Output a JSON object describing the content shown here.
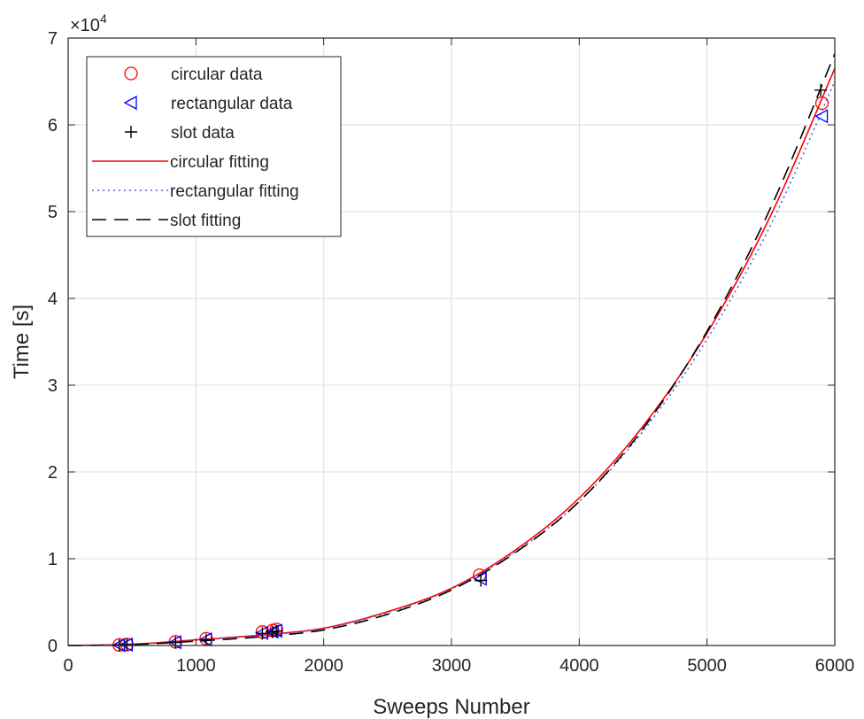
{
  "chart_data": {
    "type": "scatter",
    "xlabel": "Sweeps Number",
    "ylabel": "Time [s]",
    "xlim": [
      0,
      6000
    ],
    "ylim": [
      0,
      70000
    ],
    "x_ticks": [
      0,
      1000,
      2000,
      3000,
      4000,
      5000,
      6000
    ],
    "x_tick_labels": [
      "0",
      "1000",
      "2000",
      "3000",
      "4000",
      "5000",
      "6000"
    ],
    "y_ticks": [
      0,
      10000,
      20000,
      30000,
      40000,
      50000,
      60000,
      70000
    ],
    "y_tick_labels": [
      "0",
      "1",
      "2",
      "3",
      "4",
      "5",
      "6",
      "7"
    ],
    "y_multiplier_label": "×10",
    "y_multiplier_exponent": "4",
    "grid": true,
    "legend_position": "top-left",
    "series": [
      {
        "name": "circular data",
        "kind": "marker",
        "marker": "circle",
        "color": "#ff0000",
        "x": [
          400,
          460,
          840,
          1080,
          1520,
          1600,
          1630,
          3220,
          5900
        ],
        "y": [
          60,
          110,
          420,
          780,
          1550,
          1720,
          1850,
          8100,
          62500
        ]
      },
      {
        "name": "rectangular data",
        "kind": "marker",
        "marker": "triangle-left",
        "color": "#0000ff",
        "x": [
          400,
          460,
          840,
          1080,
          1520,
          1600,
          1630,
          3230,
          5900
        ],
        "y": [
          50,
          100,
          380,
          700,
          1450,
          1600,
          1700,
          7700,
          61000
        ]
      },
      {
        "name": "slot data",
        "kind": "marker",
        "marker": "plus",
        "color": "#000000",
        "x": [
          400,
          460,
          840,
          1080,
          1520,
          1600,
          1630,
          3230,
          5890
        ],
        "y": [
          40,
          90,
          350,
          650,
          1400,
          1550,
          1650,
          7500,
          64000
        ]
      },
      {
        "name": "circular fitting",
        "kind": "line",
        "style": "solid",
        "color": "#ff0000",
        "x": [
          0,
          500,
          1000,
          1500,
          2000,
          2500,
          3000,
          3500,
          4000,
          4500,
          5000,
          5500,
          6000
        ],
        "y": [
          0,
          150,
          650,
          1200,
          2000,
          3900,
          6600,
          11000,
          17000,
          25300,
          36000,
          49600,
          66500
        ]
      },
      {
        "name": "rectangular fitting",
        "kind": "line",
        "style": "dotted",
        "color": "#4169e1",
        "x": [
          0,
          500,
          1000,
          1500,
          2000,
          2500,
          3000,
          3500,
          4000,
          4500,
          5000,
          5500,
          6000
        ],
        "y": [
          0,
          120,
          600,
          1150,
          1950,
          3800,
          6500,
          10800,
          16600,
          24700,
          35300,
          48500,
          65000
        ]
      },
      {
        "name": "slot fitting",
        "kind": "line",
        "style": "dashed",
        "color": "#000000",
        "x": [
          0,
          500,
          1000,
          1500,
          2000,
          2500,
          3000,
          3500,
          4000,
          4500,
          5000,
          5500,
          6000
        ],
        "y": [
          0,
          100,
          500,
          1000,
          1800,
          3600,
          6400,
          10700,
          16600,
          25000,
          36200,
          50500,
          68200
        ]
      }
    ]
  }
}
